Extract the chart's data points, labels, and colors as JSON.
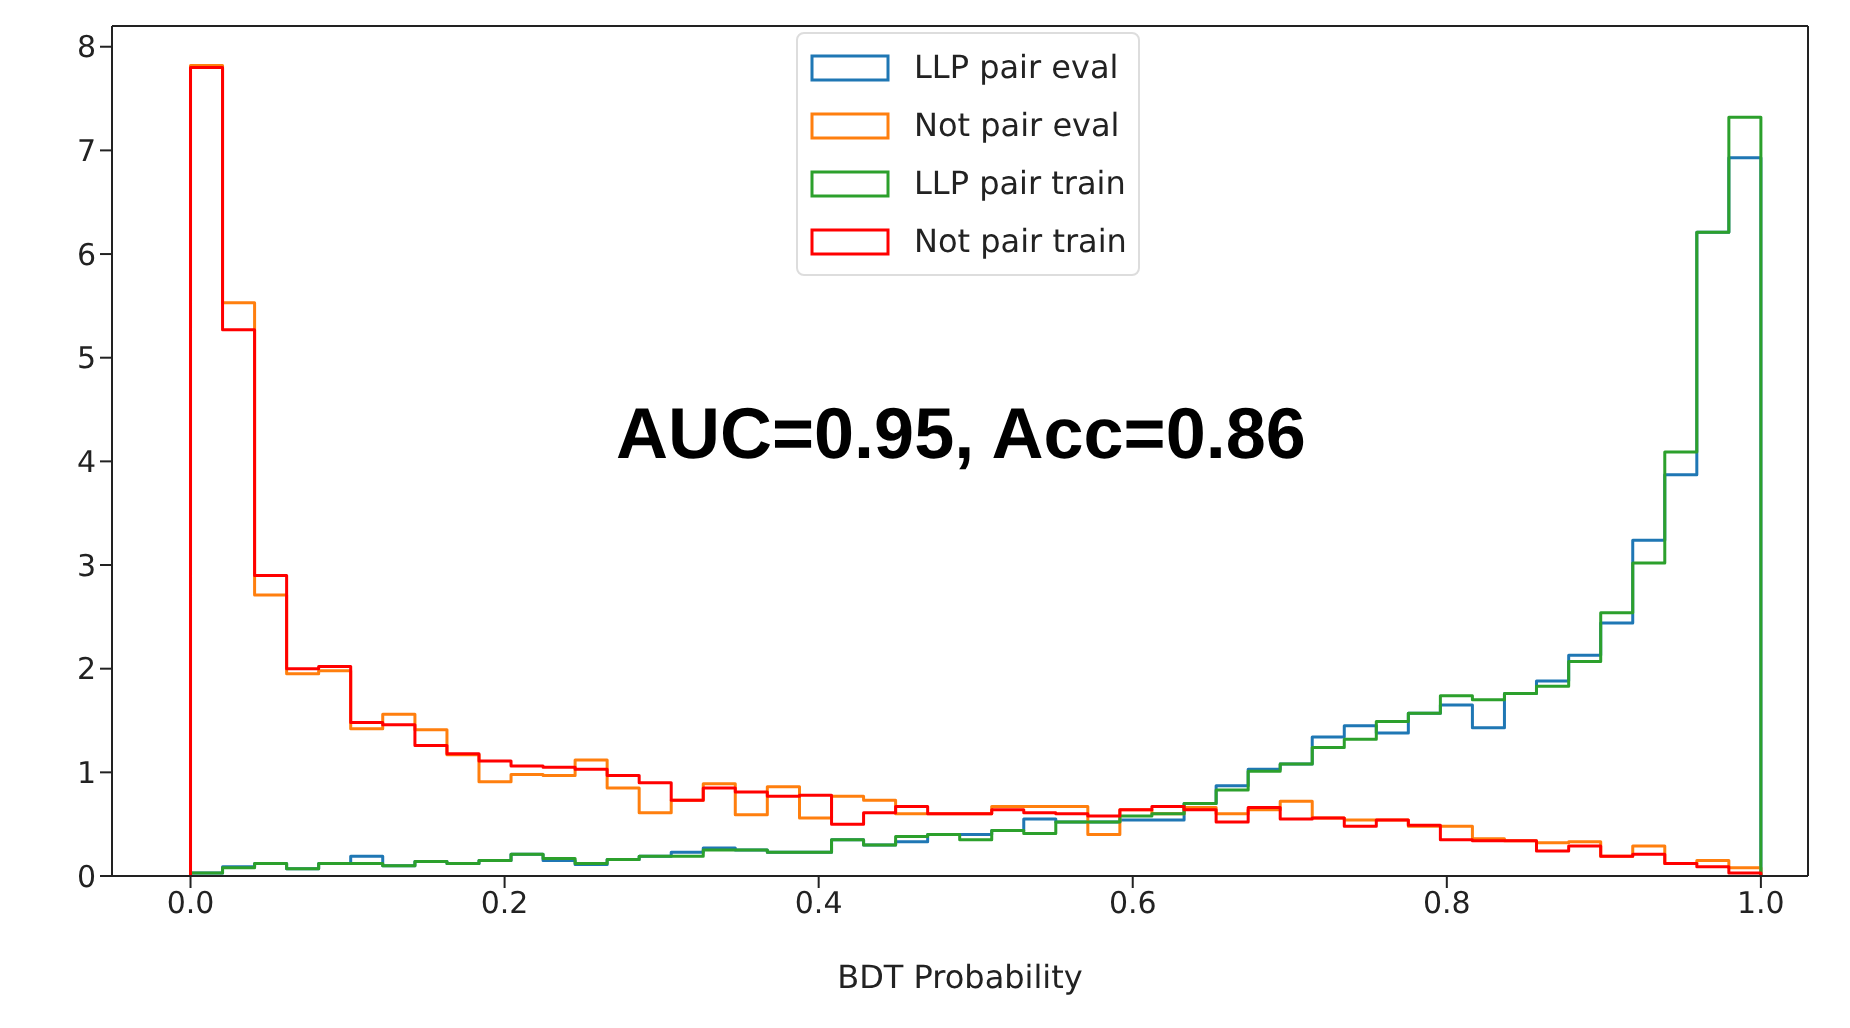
{
  "chart_data": {
    "type": "histogram",
    "xlabel": "BDT Probability",
    "annotations": [
      "AUC=0.95, Acc=0.86"
    ],
    "bins": [
      0,
      0.0204,
      0.0408,
      0.0612,
      0.0816,
      0.102,
      0.1224,
      0.1429,
      0.1633,
      0.1837,
      0.2041,
      0.2245,
      0.2449,
      0.2653,
      0.2857,
      0.3061,
      0.3265,
      0.3469,
      0.3673,
      0.3878,
      0.4082,
      0.4286,
      0.449,
      0.4694,
      0.4898,
      0.5102,
      0.5306,
      0.551,
      0.5714,
      0.5918,
      0.6122,
      0.6327,
      0.6531,
      0.6735,
      0.6939,
      0.7143,
      0.7347,
      0.7551,
      0.7755,
      0.7959,
      0.8163,
      0.8367,
      0.8571,
      0.8776,
      0.898,
      0.9184,
      0.9388,
      0.9592,
      0.9796,
      1
    ],
    "series": [
      {
        "name": "LLP pair eval",
        "color": "#1f77b4",
        "values": [
          0.03,
          0.09,
          0.12,
          0.07,
          0.12,
          0.19,
          0.1,
          0.14,
          0.12,
          0.15,
          0.21,
          0.15,
          0.11,
          0.16,
          0.19,
          0.23,
          0.27,
          0.25,
          0.23,
          0.23,
          0.35,
          0.3,
          0.33,
          0.4,
          0.4,
          0.44,
          0.55,
          0.52,
          0.52,
          0.54,
          0.54,
          0.7,
          0.87,
          1.03,
          1.08,
          1.34,
          1.45,
          1.38,
          1.57,
          1.65,
          1.43,
          1.76,
          1.88,
          2.13,
          2.44,
          3.24,
          3.87,
          6.21,
          6.93
        ]
      },
      {
        "name": "Not pair eval",
        "color": "#ff7f0e",
        "values": [
          7.82,
          5.53,
          2.71,
          1.95,
          1.98,
          1.42,
          1.56,
          1.41,
          1.17,
          0.91,
          0.98,
          0.97,
          1.12,
          0.85,
          0.61,
          0.73,
          0.89,
          0.59,
          0.86,
          0.56,
          0.77,
          0.73,
          0.6,
          0.6,
          0.6,
          0.67,
          0.67,
          0.67,
          0.4,
          0.64,
          0.6,
          0.66,
          0.6,
          0.64,
          0.72,
          0.56,
          0.54,
          0.54,
          0.48,
          0.48,
          0.36,
          0.34,
          0.32,
          0.33,
          0.19,
          0.29,
          0.12,
          0.15,
          0.08
        ]
      },
      {
        "name": "LLP pair train",
        "color": "#2ca02c",
        "values": [
          0.03,
          0.08,
          0.12,
          0.07,
          0.12,
          0.12,
          0.1,
          0.14,
          0.12,
          0.15,
          0.21,
          0.17,
          0.12,
          0.16,
          0.19,
          0.19,
          0.25,
          0.25,
          0.23,
          0.23,
          0.35,
          0.3,
          0.38,
          0.4,
          0.35,
          0.44,
          0.41,
          0.52,
          0.52,
          0.58,
          0.6,
          0.7,
          0.83,
          1.01,
          1.08,
          1.24,
          1.32,
          1.49,
          1.57,
          1.74,
          1.7,
          1.76,
          1.83,
          2.07,
          2.54,
          3.02,
          4.09,
          6.21,
          7.32
        ]
      },
      {
        "name": "Not pair train",
        "color": "#ff0000",
        "values": [
          7.8,
          5.27,
          2.9,
          2.0,
          2.02,
          1.48,
          1.46,
          1.26,
          1.18,
          1.11,
          1.06,
          1.05,
          1.03,
          0.97,
          0.9,
          0.73,
          0.85,
          0.81,
          0.77,
          0.78,
          0.5,
          0.61,
          0.67,
          0.6,
          0.6,
          0.64,
          0.61,
          0.6,
          0.58,
          0.64,
          0.67,
          0.64,
          0.52,
          0.66,
          0.55,
          0.56,
          0.48,
          0.54,
          0.49,
          0.35,
          0.34,
          0.34,
          0.24,
          0.29,
          0.19,
          0.21,
          0.12,
          0.09,
          0.03
        ]
      }
    ],
    "xlim": [
      -0.05,
      1.03
    ],
    "xticks": [
      {
        "value": 0,
        "label": "0.0"
      },
      0.2,
      0.4,
      0.6,
      0.8,
      {
        "value": 1,
        "label": "1.0"
      }
    ],
    "ylim": [
      0,
      8.2
    ],
    "yticks": [
      0,
      1,
      2,
      3,
      4,
      5,
      6,
      7,
      8
    ],
    "legend": "top"
  }
}
